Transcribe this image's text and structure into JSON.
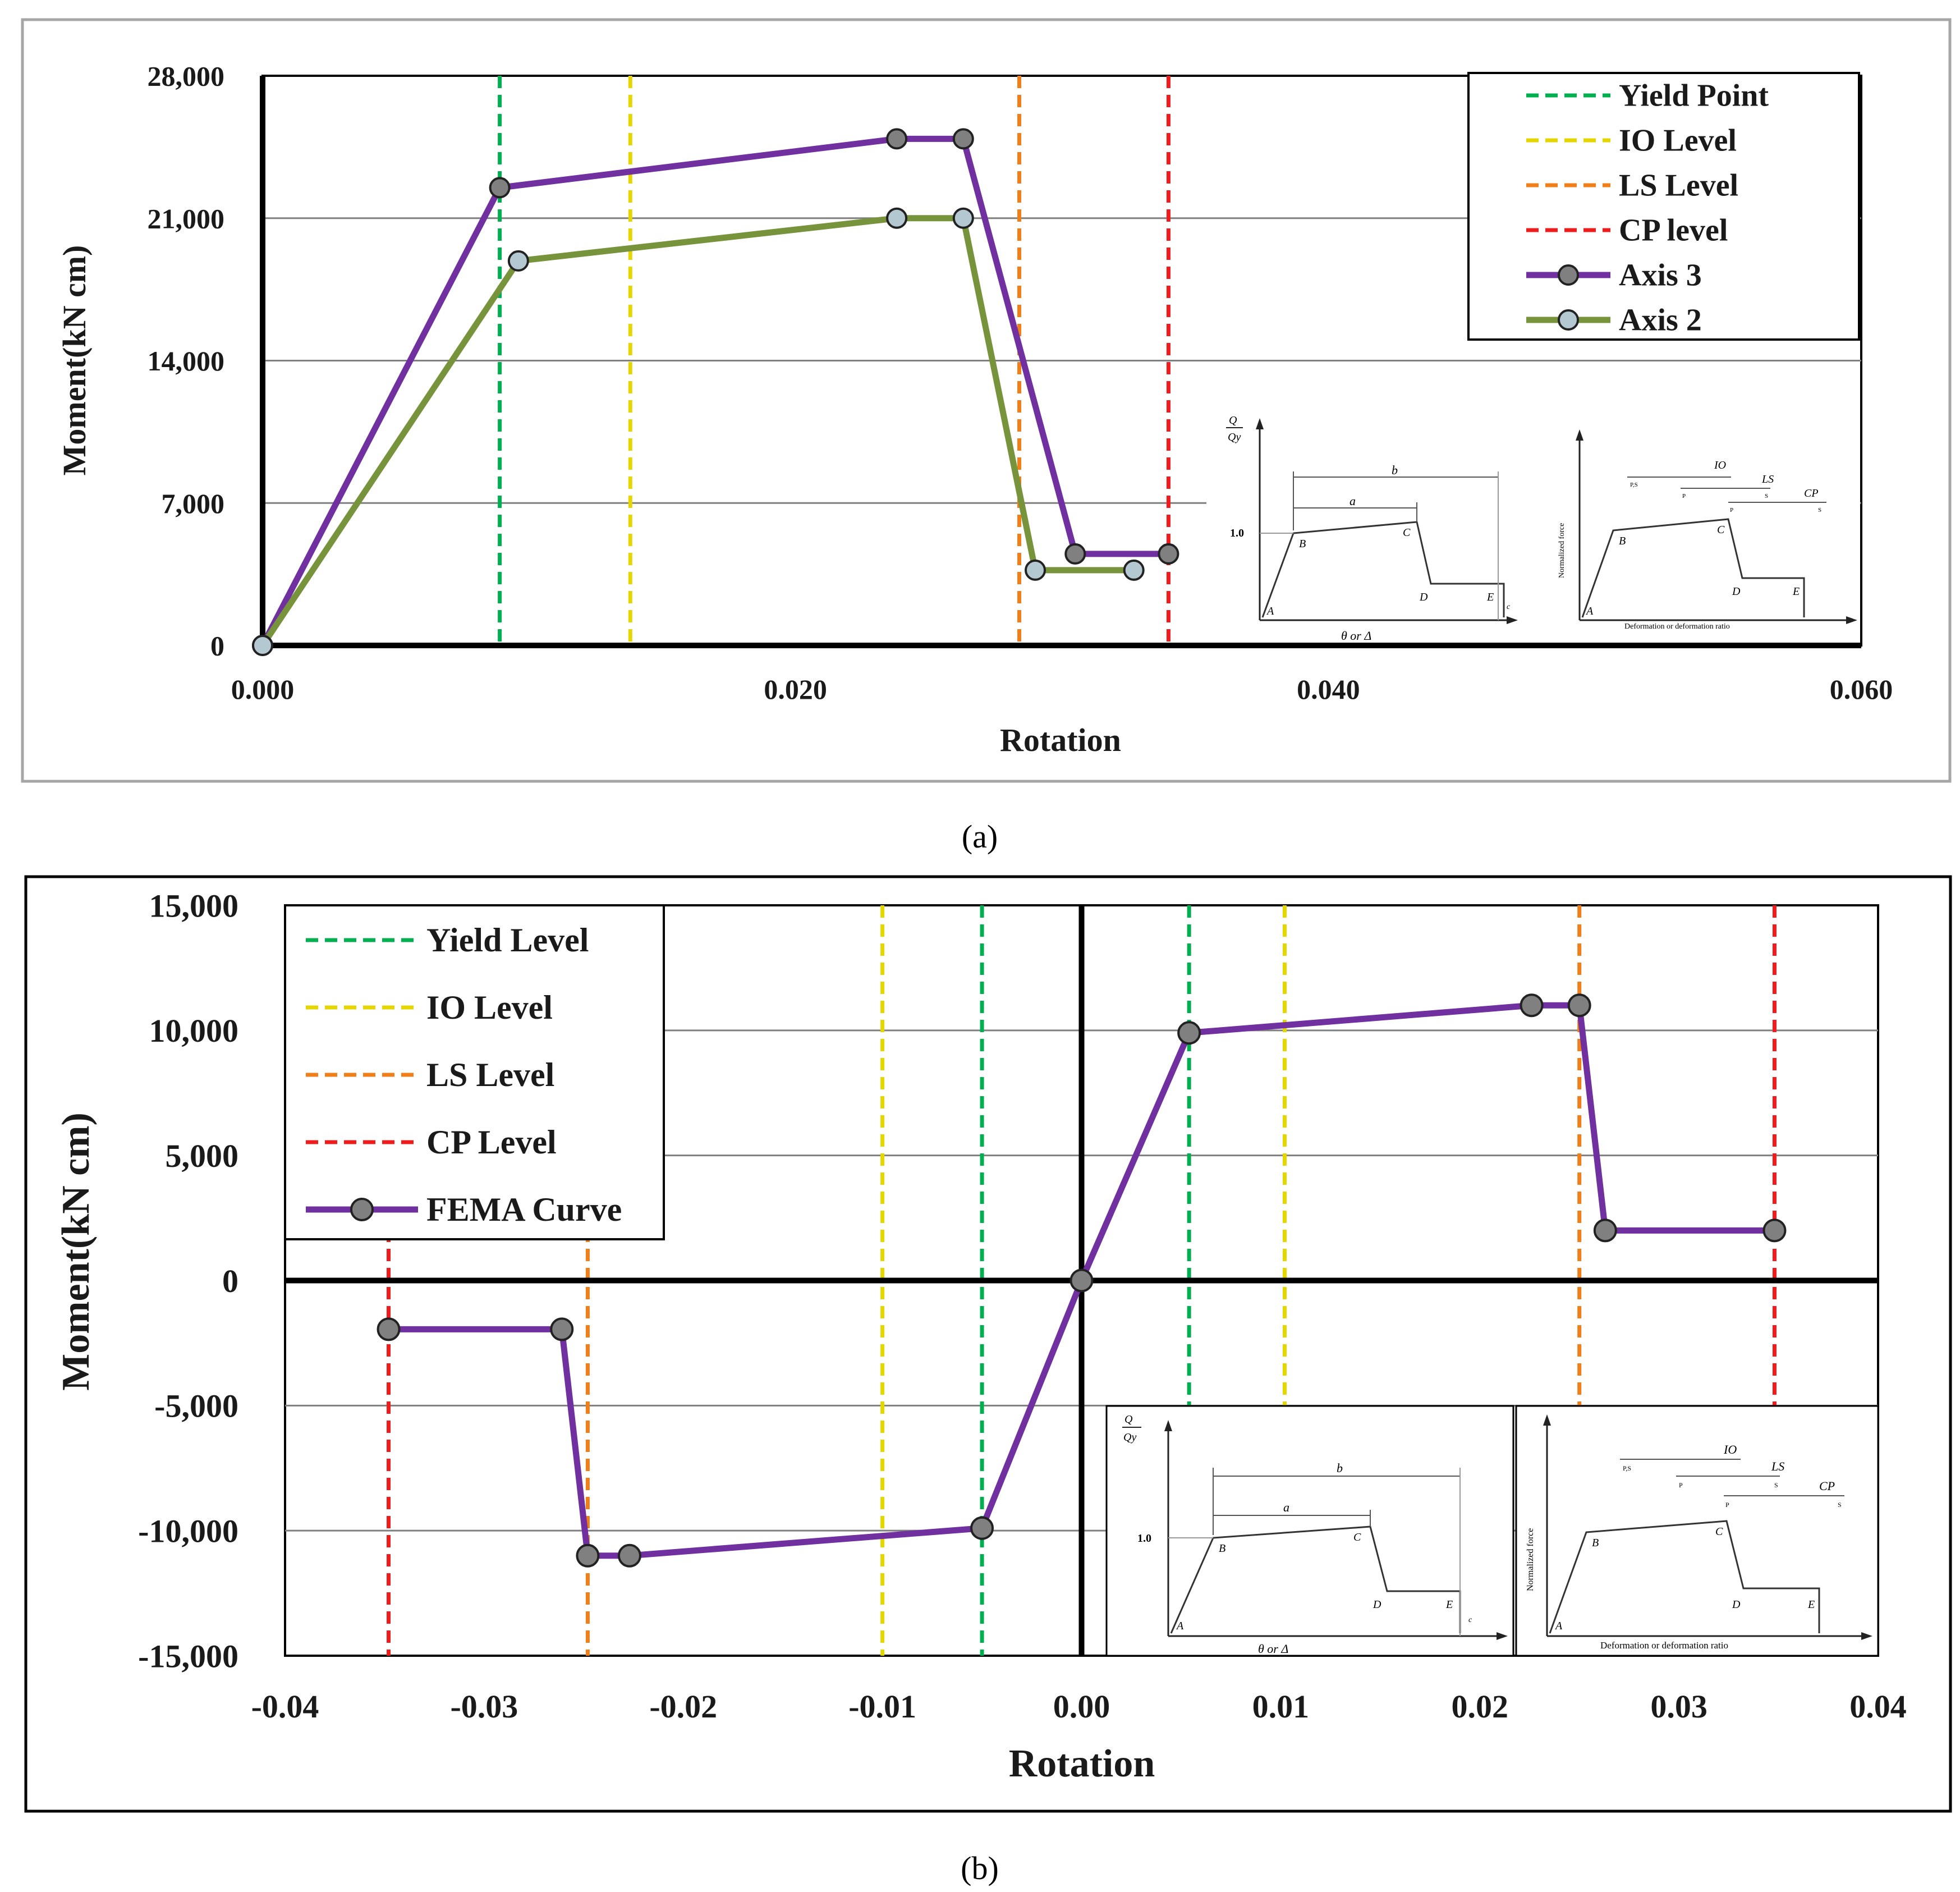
{
  "chart_data": [
    {
      "id": "a",
      "type": "line",
      "caption": "(a)",
      "xlabel": "Rotation",
      "ylabel": "Moment(kN cm)",
      "xlim": [
        0,
        0.06
      ],
      "ylim": [
        0,
        28000
      ],
      "x_ticks": [
        0,
        0.02,
        0.04,
        0.06
      ],
      "x_tick_labels": [
        "0.000",
        "0.020",
        "0.040",
        "0.060"
      ],
      "y_ticks": [
        0,
        7000,
        14000,
        21000,
        28000
      ],
      "y_tick_labels": [
        "0",
        "7,000",
        "14,000",
        "21,000",
        "28,000"
      ],
      "grid_y": true,
      "legend_position": "top-right",
      "vlines": [
        {
          "name": "Yield Point",
          "x": 0.0089,
          "color": "#00b050"
        },
        {
          "name": "IO Level",
          "x": 0.0138,
          "color": "#e6d600"
        },
        {
          "name": "LS Level",
          "x": 0.0284,
          "color": "#f07f1a"
        },
        {
          "name": "CP level",
          "x": 0.034,
          "color": "#ee1c1c"
        }
      ],
      "series": [
        {
          "name": "Axis 3",
          "color": "#7030a0",
          "marker_fill": "#808080",
          "x": [
            0,
            0.0089,
            0.0238,
            0.0263,
            0.0305,
            0.034
          ],
          "y": [
            0,
            22500,
            24900,
            24900,
            4500,
            4500
          ]
        },
        {
          "name": "Axis 2",
          "color": "#77933c",
          "marker_fill": "#b4c8d2",
          "x": [
            0,
            0.0096,
            0.0238,
            0.0263,
            0.029,
            0.0327
          ],
          "y": [
            0,
            18900,
            21000,
            21000,
            3700,
            3700
          ]
        }
      ],
      "legend": [
        "Yield Point",
        "IO Level",
        "LS Level",
        "CP level",
        "Axis 3",
        "Axis 2"
      ]
    },
    {
      "id": "b",
      "type": "line",
      "caption": "(b)",
      "xlabel": "Rotation",
      "ylabel": "Moment(kN cm)",
      "xlim": [
        -0.04,
        0.04
      ],
      "ylim": [
        -15000,
        15000
      ],
      "x_ticks": [
        -0.04,
        -0.03,
        -0.02,
        -0.01,
        0,
        0.01,
        0.02,
        0.03,
        0.04
      ],
      "x_tick_labels": [
        "-0.04",
        "-0.03",
        "-0.02",
        "-0.01",
        "0.00",
        "0.01",
        "0.02",
        "0.03",
        "0.04"
      ],
      "y_ticks": [
        -15000,
        -10000,
        -5000,
        0,
        5000,
        10000,
        15000
      ],
      "y_tick_labels": [
        "-15,000",
        "-10,000",
        "-5,000",
        "0",
        "5,000",
        "10,000",
        "15,000"
      ],
      "grid_y": true,
      "legend_position": "top-left",
      "vlines": [
        {
          "name": "Yield Level",
          "x": 0.0054,
          "color": "#00b050"
        },
        {
          "name": "Yield Level",
          "x": -0.005,
          "color": "#00b050"
        },
        {
          "name": "IO Level",
          "x": 0.0102,
          "color": "#e6d600"
        },
        {
          "name": "IO Level",
          "x": -0.01,
          "color": "#e6d600"
        },
        {
          "name": "LS Level",
          "x": 0.025,
          "color": "#f07f1a"
        },
        {
          "name": "LS Level",
          "x": -0.0248,
          "color": "#f07f1a"
        },
        {
          "name": "CP Level",
          "x": 0.0348,
          "color": "#ee1c1c"
        },
        {
          "name": "CP Level",
          "x": -0.0348,
          "color": "#ee1c1c"
        }
      ],
      "series": [
        {
          "name": "FEMA Curve",
          "color": "#7030a0",
          "marker_fill": "#808080",
          "x": [
            -0.0348,
            -0.0261,
            -0.0248,
            -0.0227,
            -0.005,
            0,
            0.0054,
            0.0226,
            0.025,
            0.0263,
            0.0348
          ],
          "y": [
            -1950,
            -1950,
            -11000,
            -11000,
            -9900,
            0,
            9900,
            11000,
            11000,
            2000,
            2000
          ]
        }
      ],
      "legend": [
        "Yield Level",
        "IO Level",
        "LS Level",
        "CP Level",
        "FEMA Curve"
      ]
    }
  ],
  "insets": {
    "left": {
      "y_label_num": "Q",
      "y_label_den": "Qy",
      "one": "1.0",
      "a": "a",
      "b": "b",
      "c": "c",
      "points": [
        "A",
        "B",
        "C",
        "D",
        "E"
      ],
      "x_label": "θ or Δ"
    },
    "right": {
      "y_label": "Normalized force",
      "x_label": "Deformation or deformation ratio",
      "points": [
        "A",
        "B",
        "C",
        "D",
        "E"
      ],
      "levels": [
        "IO",
        "LS",
        "CP"
      ],
      "small": [
        "P,S",
        "P",
        "S",
        "P",
        "S"
      ]
    }
  }
}
